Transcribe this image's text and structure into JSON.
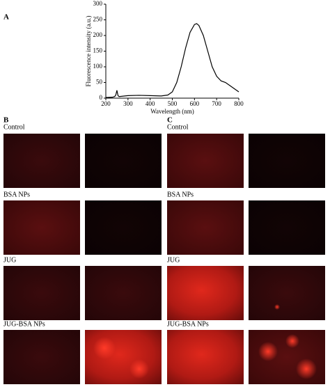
{
  "chart_data": {
    "type": "line",
    "panel_label": "A",
    "xlabel": "Wavelength (nm)",
    "ylabel": "Fluorescence intensity (a.u.)",
    "x": [
      200,
      230,
      240,
      245,
      250,
      255,
      260,
      300,
      350,
      400,
      450,
      480,
      500,
      520,
      540,
      560,
      580,
      600,
      610,
      620,
      640,
      660,
      680,
      700,
      720,
      740,
      760,
      780,
      800
    ],
    "series": [
      {
        "name": "JUG-BSA NPs",
        "color": "#000000",
        "values": [
          2,
          3,
          5,
          10,
          25,
          8,
          5,
          8,
          9,
          8,
          7,
          10,
          20,
          50,
          100,
          160,
          210,
          235,
          238,
          232,
          200,
          150,
          100,
          70,
          55,
          50,
          40,
          30,
          20
        ]
      }
    ],
    "xlim": [
      200,
      800
    ],
    "xticks": [
      200,
      300,
      400,
      500,
      600,
      700,
      800
    ],
    "ylim": [
      0,
      300
    ],
    "yticks": [
      0,
      50,
      100,
      150,
      200,
      250,
      300
    ]
  },
  "panels": [
    {
      "label": "B",
      "rows": [
        "Control",
        "BSA NPs",
        "JUG",
        "JUG-BSA NPs"
      ]
    },
    {
      "label": "C",
      "rows": [
        "Control",
        "BSA NPs",
        "JUG",
        "JUG-BSA NPs"
      ]
    }
  ]
}
